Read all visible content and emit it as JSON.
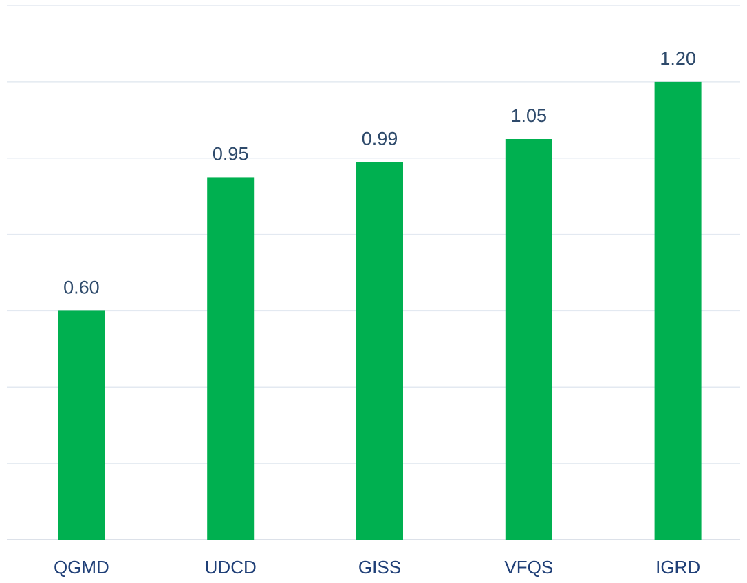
{
  "chart_data": {
    "type": "bar",
    "categories": [
      "QGMD",
      "UDCD",
      "GISS",
      "VFQS",
      "IGRD"
    ],
    "values": [
      0.6,
      0.95,
      0.99,
      1.05,
      1.2
    ],
    "value_labels": [
      "0.60",
      "0.95",
      "0.99",
      "1.05",
      "1.20"
    ],
    "color": "#00b050",
    "ylim": [
      0,
      1.4
    ],
    "yticks": [
      0,
      0.2,
      0.4,
      0.6,
      0.8,
      1,
      1.2,
      1.4
    ],
    "grid": true
  }
}
